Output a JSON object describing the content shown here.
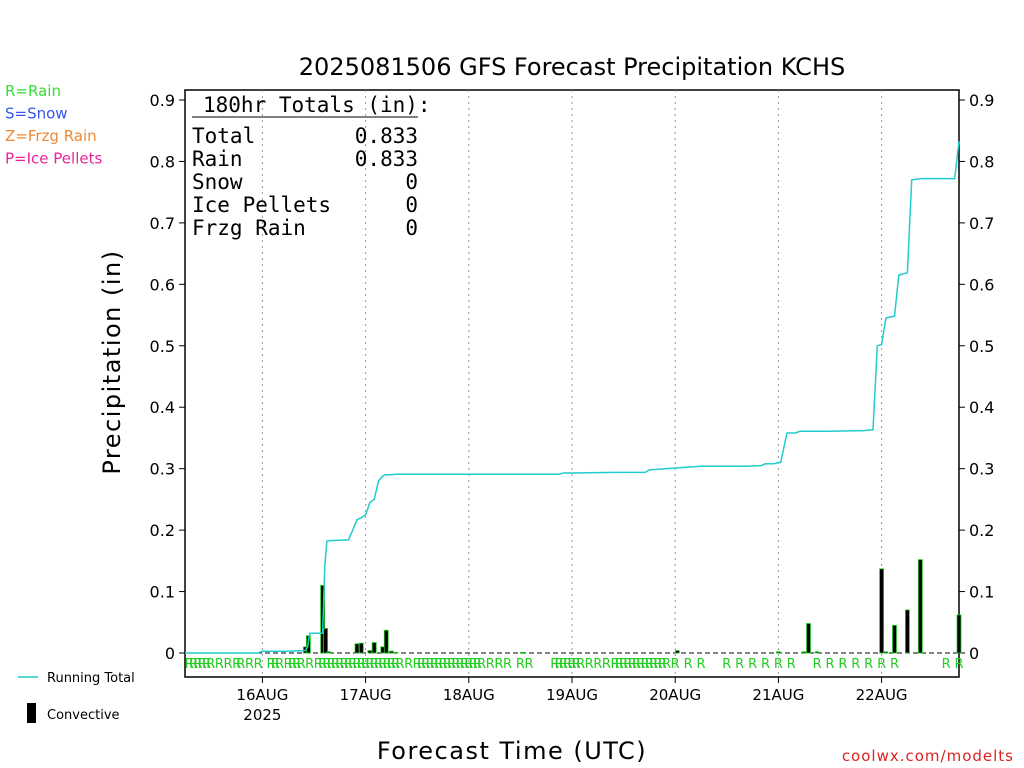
{
  "chart_data": {
    "type": "bar",
    "title": "2025081506 GFS Forecast Precipitation KCHS",
    "xlabel": "Forecast Time (UTC)",
    "ylabel": "Precipitation (in)",
    "ylim": [
      0,
      0.9
    ],
    "yticks": [
      0,
      0.1,
      0.2,
      0.3,
      0.4,
      0.5,
      0.6,
      0.7,
      0.8,
      0.9
    ],
    "ytick_labels": [
      "0",
      "0.1",
      "0.2",
      "0.3",
      "0.4",
      "0.5",
      "0.6",
      "0.7",
      "0.8",
      "0.9"
    ],
    "xlim_hours": [
      0,
      180
    ],
    "grid": "vertical dotted at day boundaries",
    "x_ticks": [
      {
        "label": "16AUG",
        "sub": "2025",
        "hour": 18
      },
      {
        "label": "17AUG",
        "sub": "",
        "hour": 42
      },
      {
        "label": "18AUG",
        "sub": "",
        "hour": 66
      },
      {
        "label": "19AUG",
        "sub": "",
        "hour": 90
      },
      {
        "label": "20AUG",
        "sub": "",
        "hour": 114
      },
      {
        "label": "21AUG",
        "sub": "",
        "hour": 138
      },
      {
        "label": "22AUG",
        "sub": "",
        "hour": 162
      }
    ],
    "totals_box": {
      "header": "180hr Totals (in):",
      "rows": [
        {
          "label": "Total",
          "value": "0.833"
        },
        {
          "label": "Rain",
          "value": "0.833"
        },
        {
          "label": "Snow",
          "value": "0"
        },
        {
          "label": "Ice Pellets",
          "value": "0"
        },
        {
          "label": "Frzg Rain",
          "value": "0"
        }
      ]
    },
    "type_legend": [
      {
        "text": "R=Rain",
        "color": "#33dd33"
      },
      {
        "text": "S=Snow",
        "color": "#3355ee"
      },
      {
        "text": "Z=Frzg Rain",
        "color": "#ee8833"
      },
      {
        "text": "P=Ice Pellets",
        "color": "#ee2299"
      }
    ],
    "legend": {
      "running_total": "Running Total",
      "convective": "Convective"
    },
    "colors": {
      "running_total": "#22cccc",
      "convective": "#000000",
      "rain": "#22cc22",
      "grid": "#999999"
    },
    "precip_type_marker": "R",
    "type_marker_hours": [
      1,
      2,
      3,
      4,
      5,
      6,
      8,
      10,
      12,
      13,
      15,
      17,
      20,
      21,
      22,
      24,
      25,
      26,
      27,
      29,
      31,
      32,
      33,
      34,
      35,
      36,
      37,
      38,
      39,
      40,
      41,
      42,
      43,
      44,
      45,
      46,
      47,
      48,
      49,
      50,
      52,
      54,
      55,
      56,
      57,
      58,
      59,
      60,
      61,
      62,
      63,
      64,
      65,
      66,
      67,
      68,
      69,
      71,
      73,
      75,
      78,
      80,
      86,
      87,
      88,
      89,
      90,
      91,
      92,
      94,
      96,
      98,
      100,
      101,
      102,
      103,
      104,
      105,
      106,
      107,
      108,
      109,
      110,
      111,
      112,
      114,
      117,
      120,
      126,
      129,
      132,
      135,
      138,
      141,
      147,
      150,
      153,
      156,
      159,
      162,
      165,
      177,
      180
    ],
    "bars": {
      "hours": [
        28,
        28.7,
        32,
        32.7,
        33.5,
        40,
        41,
        43,
        44,
        46,
        46.8,
        48,
        49,
        78.5,
        114.5,
        138,
        144,
        145,
        147,
        162,
        163,
        165,
        168,
        171,
        180
      ],
      "values": [
        0.01,
        0.028,
        0.11,
        0.04,
        0.002,
        0.015,
        0.016,
        0.004,
        0.017,
        0.01,
        0.037,
        0.003,
        0.001,
        0.001,
        0.004,
        0.002,
        0.002,
        0.048,
        0.002,
        0.137,
        0.002,
        0.045,
        0.07,
        0.152,
        0.062
      ]
    },
    "running_total": {
      "x": [
        0,
        17,
        18,
        24,
        28,
        28.5,
        29,
        32,
        32.5,
        33,
        33.5,
        34,
        38,
        39,
        40,
        41,
        42,
        42.5,
        43,
        44,
        45,
        46,
        46.5,
        47,
        48,
        49,
        50,
        60,
        80,
        87,
        88,
        90,
        100,
        107,
        108,
        110,
        120,
        130,
        134,
        135,
        137,
        138,
        138.5,
        140,
        142,
        143,
        150,
        158,
        159,
        160,
        161,
        162,
        163,
        164,
        165,
        166,
        167,
        168,
        169,
        170,
        171,
        175,
        179,
        180
      ],
      "y": [
        0,
        0,
        0.003,
        0.003,
        0.004,
        0.01,
        0.032,
        0.032,
        0.142,
        0.182,
        0.183,
        0.183,
        0.184,
        0.2,
        0.217,
        0.22,
        0.225,
        0.235,
        0.245,
        0.25,
        0.28,
        0.288,
        0.29,
        0.29,
        0.29,
        0.291,
        0.291,
        0.291,
        0.291,
        0.291,
        0.293,
        0.293,
        0.294,
        0.294,
        0.298,
        0.299,
        0.304,
        0.304,
        0.305,
        0.308,
        0.308,
        0.31,
        0.31,
        0.358,
        0.358,
        0.361,
        0.361,
        0.362,
        0.363,
        0.363,
        0.5,
        0.502,
        0.545,
        0.547,
        0.548,
        0.615,
        0.617,
        0.619,
        0.77,
        0.771,
        0.772,
        0.772,
        0.772,
        0.833
      ]
    }
  },
  "credit": "coolwx.com/modelts"
}
